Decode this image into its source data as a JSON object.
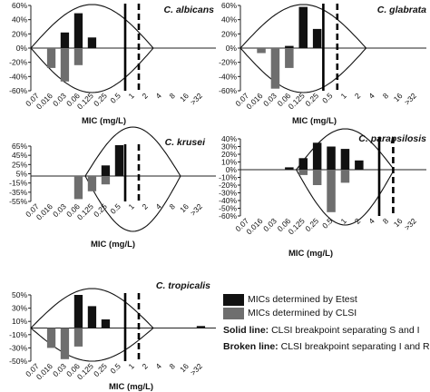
{
  "colors": {
    "etest": "#111111",
    "clsi": "#6e6e6e",
    "axis": "#222222",
    "curve": "#111111"
  },
  "legend": {
    "etest": "MICs determined by Etest",
    "clsi": "MICs determined by CLSI",
    "solid_key": "Solid line:",
    "solid_text": " CLSI breakpoint separating S and I",
    "broken_key": "Broken line:",
    "broken_text": " CLSI breakpoint separating I and R"
  },
  "chart_data": [
    {
      "type": "bar",
      "title": "C. albicans",
      "xlabel": "MIC (mg/L)",
      "categories": [
        "0.07",
        "0.016",
        "0.03",
        "0.06",
        "0.125",
        "0.25",
        "0.5",
        "1",
        "2",
        "4",
        "8",
        "16",
        ">32"
      ],
      "yticks": [
        "60%",
        "40%",
        "20%",
        "0%",
        "-20%",
        "-40%",
        "-60%"
      ],
      "series": [
        {
          "name": "MICs determined by Etest",
          "values": [
            0,
            0,
            22,
            49,
            15,
            0,
            0,
            0,
            0,
            0,
            0,
            0,
            0
          ]
        },
        {
          "name": "MICs determined by CLSI",
          "values": [
            0,
            -28,
            -47,
            -24,
            0,
            0,
            0,
            0,
            0,
            0,
            0,
            0,
            0
          ]
        }
      ],
      "solid_breakpoint": "between 0.25 and 0.5",
      "broken_breakpoint": "between 0.5 and 1"
    },
    {
      "type": "bar",
      "title": "C. glabrata",
      "xlabel": "MIC (mg/L)",
      "categories": [
        "0.07",
        "0.016",
        "0.03",
        "0.06",
        "0.125",
        "0.25",
        "0.5",
        "1",
        "2",
        "4",
        "8",
        "16",
        ">32"
      ],
      "yticks": [
        "60%",
        "40%",
        "20%",
        "0%",
        "-20%",
        "-40%",
        "-60%"
      ],
      "series": [
        {
          "name": "MICs determined by Etest",
          "values": [
            0,
            0,
            0,
            3,
            58,
            27,
            0,
            0,
            0,
            0,
            0,
            0,
            0
          ]
        },
        {
          "name": "MICs determined by CLSI",
          "values": [
            0,
            -7,
            -57,
            -28,
            0,
            0,
            0,
            0,
            0,
            0,
            0,
            0,
            0
          ]
        }
      ],
      "solid_breakpoint": "between 0.125 and 0.25",
      "broken_breakpoint": "between 0.25 and 0.5"
    },
    {
      "type": "bar",
      "title": "C. krusei",
      "xlabel": "MIC (mg/L)",
      "categories": [
        "0.07",
        "0.016",
        "0.03",
        "0.06",
        "0.125",
        "0.25",
        "0.5",
        "1",
        "2",
        "4",
        "8",
        "16",
        ">32"
      ],
      "yticks": [
        "65%",
        "45%",
        "25%",
        "5%",
        "-15%",
        "-35%",
        "-55%"
      ],
      "series": [
        {
          "name": "MICs determined by Etest",
          "values": [
            0,
            0,
            0,
            0,
            0,
            23,
            67,
            0,
            0,
            0,
            0,
            0,
            0
          ]
        },
        {
          "name": "MICs determined by CLSI",
          "values": [
            0,
            0,
            0,
            -50,
            -33,
            -18,
            0,
            0,
            0,
            0,
            0,
            0,
            0
          ]
        }
      ],
      "solid_breakpoint": "between 0.25 and 0.5",
      "broken_breakpoint": "between 0.5 and 1"
    },
    {
      "type": "bar",
      "title": "C. parapsilosis",
      "xlabel": "MIC (mg/L)",
      "categories": [
        "0.07",
        "0.016",
        "0.03",
        "0.06",
        "0.125",
        "0.25",
        "0.5",
        "1",
        "2",
        "4",
        "8",
        "16",
        ">32"
      ],
      "yticks": [
        "40%",
        "30%",
        "20%",
        "10%",
        "0%",
        "-10%",
        "-20%",
        "-30%",
        "-40%",
        "-50%",
        "-60%"
      ],
      "series": [
        {
          "name": "MICs determined by Etest",
          "values": [
            0,
            0,
            0,
            3,
            15,
            35,
            30,
            27,
            12,
            0,
            0,
            0,
            0
          ]
        },
        {
          "name": "MICs determined by CLSI",
          "values": [
            0,
            0,
            0,
            0,
            -7,
            -20,
            -55,
            -17,
            0,
            0,
            0,
            0,
            0
          ]
        }
      ],
      "solid_breakpoint": "between 2 and 4",
      "broken_breakpoint": "between 4 and 8"
    },
    {
      "type": "bar",
      "title": "C. tropicalis",
      "xlabel": "MIC (mg/L)",
      "categories": [
        "0.07",
        "0.016",
        "0.03",
        "0.06",
        "0.125",
        "0.25",
        "0.5",
        "1",
        "2",
        "4",
        "8",
        "16",
        ">32"
      ],
      "yticks": [
        "50%",
        "30%",
        "10%",
        "-10%",
        "-30%",
        "-50%"
      ],
      "series": [
        {
          "name": "MICs determined by Etest",
          "values": [
            0,
            0,
            0,
            50,
            33,
            13,
            0,
            0,
            0,
            0,
            0,
            0,
            3
          ]
        },
        {
          "name": "MICs determined by CLSI",
          "values": [
            0,
            -30,
            -47,
            -28,
            0,
            0,
            0,
            0,
            0,
            0,
            0,
            0,
            0
          ]
        }
      ],
      "solid_breakpoint": "between 0.25 and 0.5",
      "broken_breakpoint": "between 0.5 and 1"
    }
  ]
}
